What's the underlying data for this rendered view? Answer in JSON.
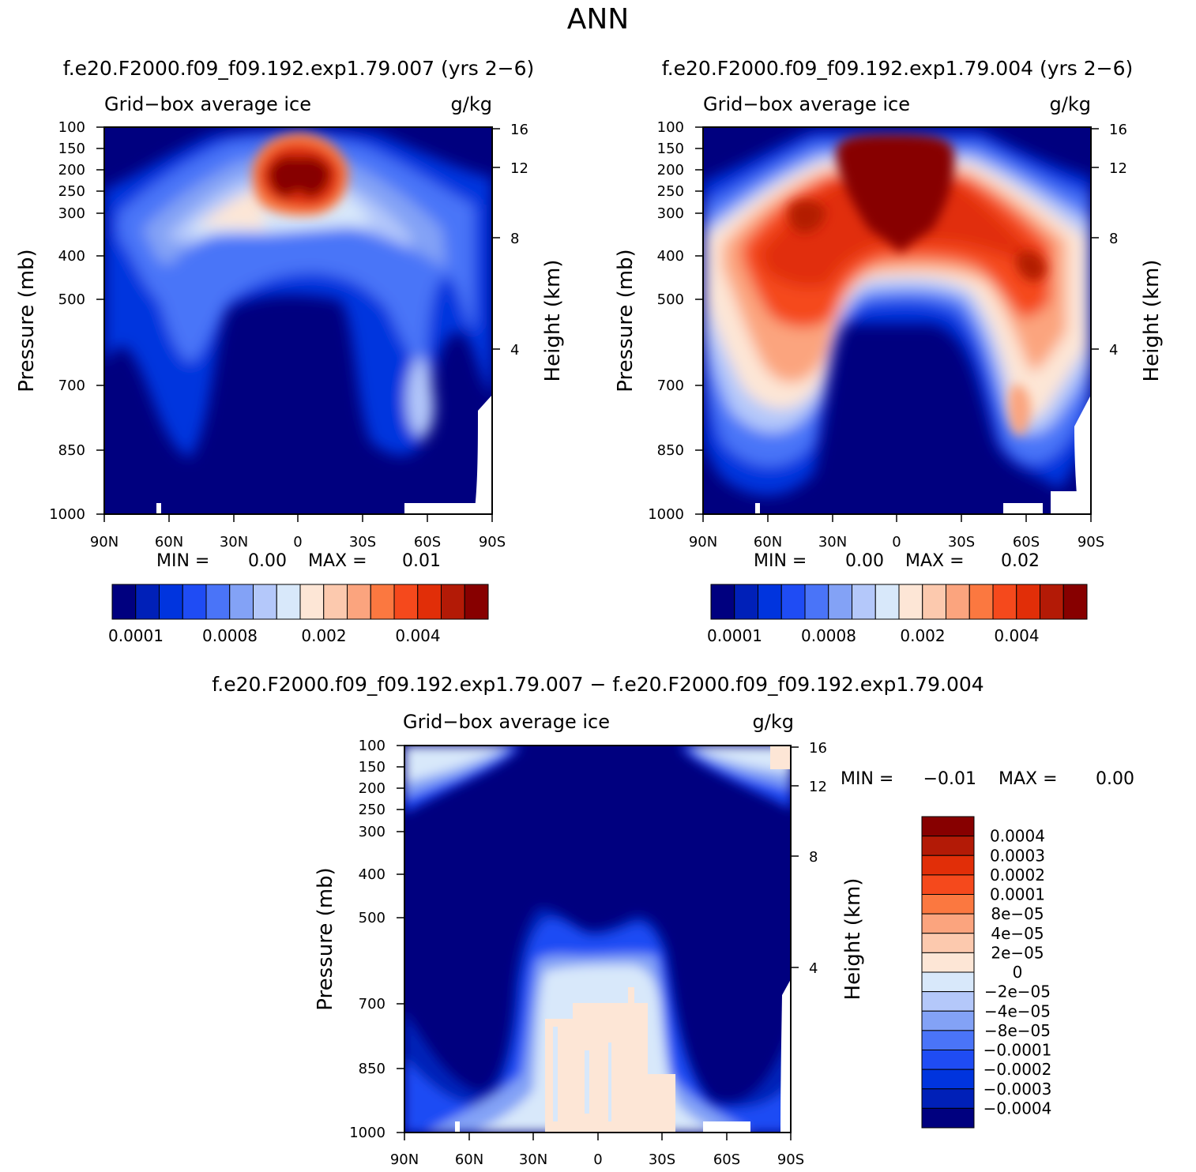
{
  "page_title": "ANN",
  "colors": {
    "scale14": [
      "#00007f",
      "#0020b8",
      "#0034de",
      "#1f4cf4",
      "#4a74f8",
      "#83a2f6",
      "#b4c8fa",
      "#d8e8fa",
      "#fde6d6",
      "#fcc9ae",
      "#fba47e",
      "#fb7840",
      "#f5491c",
      "#e12e08",
      "#b31a06",
      "#870000"
    ],
    "scale_diff": [
      "#00007f",
      "#0020b8",
      "#0034de",
      "#1f4cf4",
      "#4a74f8",
      "#83a2f6",
      "#b4c8fa",
      "#d8e8fa",
      "#fde6d6",
      "#fcc9ae",
      "#fba47e",
      "#fb7840",
      "#f5491c",
      "#e12e08",
      "#b31a06",
      "#870000"
    ]
  },
  "chart_data": [
    {
      "type": "heatmap",
      "panel": "top-left",
      "title": "f.e20.F2000.f09_f09.192.exp1.79.007 (yrs 2−6)",
      "subtitle_left": "Grid−box average ice",
      "subtitle_right": "g/kg",
      "ylabel": "Pressure (mb)",
      "ylabel_right": "Height (km)",
      "x_ticks": [
        "90N",
        "60N",
        "30N",
        "0",
        "30S",
        "60S",
        "90S"
      ],
      "y_ticks": [
        "100",
        "150",
        "200",
        "250",
        "300",
        "400",
        "500",
        "700",
        "850",
        "1000"
      ],
      "height_ticks": [
        "16",
        "12",
        "8",
        "4"
      ],
      "min_text": "MIN =",
      "min_value": "0.00",
      "max_text": "MAX =",
      "max_value": "0.01",
      "colorbar_labels": [
        "0.0001",
        "0.0008",
        "0.002",
        "0.004"
      ]
    },
    {
      "type": "heatmap",
      "panel": "top-right",
      "title": "f.e20.F2000.f09_f09.192.exp1.79.004 (yrs 2−6)",
      "subtitle_left": "Grid−box average ice",
      "subtitle_right": "g/kg",
      "ylabel": "Pressure (mb)",
      "ylabel_right": "Height (km)",
      "x_ticks": [
        "90N",
        "60N",
        "30N",
        "0",
        "30S",
        "60S",
        "90S"
      ],
      "y_ticks": [
        "100",
        "150",
        "200",
        "250",
        "300",
        "400",
        "500",
        "700",
        "850",
        "1000"
      ],
      "height_ticks": [
        "16",
        "12",
        "8",
        "4"
      ],
      "min_text": "MIN =",
      "min_value": "0.00",
      "max_text": "MAX =",
      "max_value": "0.02",
      "colorbar_labels": [
        "0.0001",
        "0.0008",
        "0.002",
        "0.004"
      ]
    },
    {
      "type": "heatmap",
      "panel": "bottom",
      "title": "f.e20.F2000.f09_f09.192.exp1.79.007 − f.e20.F2000.f09_f09.192.exp1.79.004",
      "subtitle_left": "Grid−box average ice",
      "subtitle_right": "g/kg",
      "ylabel": "Pressure (mb)",
      "ylabel_right": "Height (km)",
      "x_ticks": [
        "90N",
        "60N",
        "30N",
        "0",
        "30S",
        "60S",
        "90S"
      ],
      "y_ticks": [
        "100",
        "150",
        "200",
        "250",
        "300",
        "400",
        "500",
        "700",
        "850",
        "1000"
      ],
      "height_ticks": [
        "16",
        "12",
        "8",
        "4"
      ],
      "min_text": "MIN =",
      "min_value": "−0.01",
      "max_text": "MAX =",
      "max_value": "0.00",
      "colorbar_labels": [
        "0.0004",
        "0.0003",
        "0.0002",
        "0.0001",
        "8e−05",
        "4e−05",
        "2e−05",
        "0",
        "−2e−05",
        "−4e−05",
        "−8e−05",
        "−0.0001",
        "−0.0002",
        "−0.0003",
        "−0.0004"
      ]
    }
  ]
}
